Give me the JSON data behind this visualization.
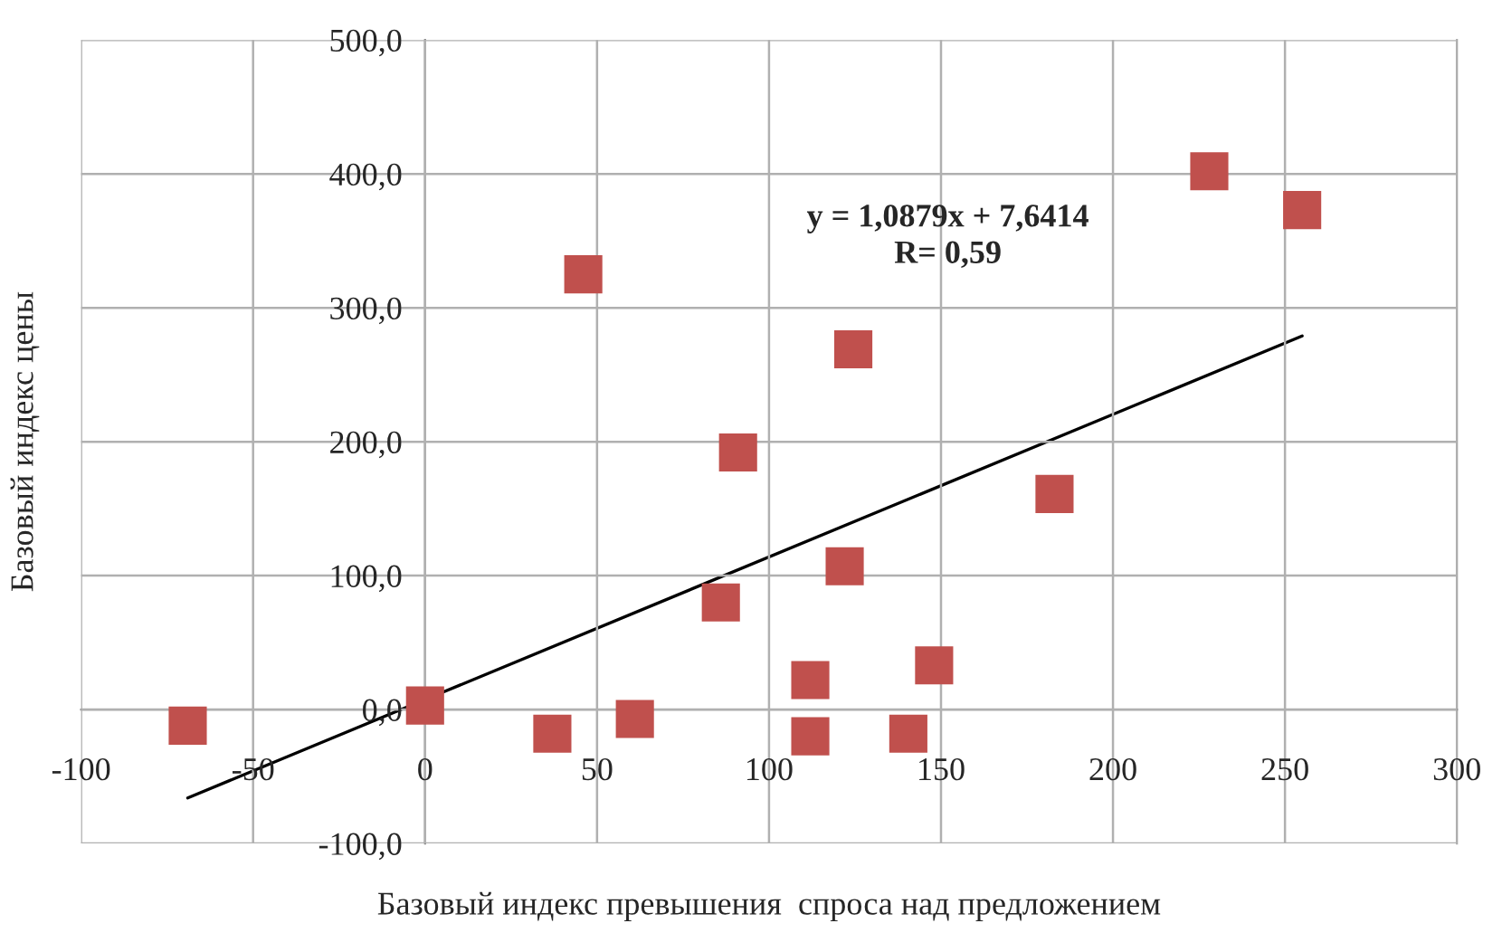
{
  "chart_data": {
    "type": "scatter",
    "xlabel": "Базовый индекс превышения  спроса над предложением",
    "ylabel": "Базовый индекс цены",
    "annotations": [
      "y = 1,0879x + 7,6414\nR= 0,59"
    ],
    "series": [
      {
        "type": "scatter",
        "color": "#c0504d",
        "marker": "square",
        "x": [
          -69,
          0,
          37,
          46,
          61,
          86,
          91,
          112,
          112,
          122,
          124.5,
          140.5,
          148,
          183,
          228,
          255
        ],
        "values": [
          -12,
          3,
          -18,
          325,
          -7,
          80,
          192,
          22,
          -20,
          107,
          269,
          -18,
          33,
          161,
          402,
          373
        ]
      },
      {
        "type": "line",
        "color": "#000000",
        "marker": "none",
        "line_style": "solid",
        "x": [
          -69,
          255
        ],
        "values": [
          -66,
          279
        ]
      }
    ],
    "xlim": [
      -100,
      300
    ],
    "xticks": [
      -100,
      -50,
      0,
      50,
      100,
      150,
      200,
      250,
      300
    ],
    "ylim": [
      -100,
      500
    ],
    "yticks": [
      {
        "value": -100,
        "label": "-100,0"
      },
      {
        "value": 0,
        "label": "0,0"
      },
      {
        "value": 100,
        "label": "100,0"
      },
      {
        "value": 200,
        "label": "200,0"
      },
      {
        "value": 300,
        "label": "300,0"
      },
      {
        "value": 400,
        "label": "400,0"
      },
      {
        "value": 500,
        "label": "500,0"
      }
    ],
    "grid": true,
    "legend": false
  }
}
